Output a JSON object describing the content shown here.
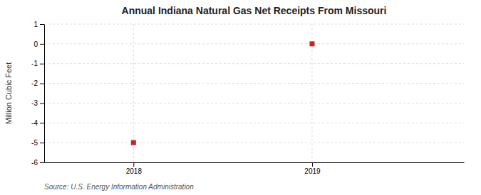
{
  "chart_data": {
    "type": "scatter",
    "title": "Annual Indiana Natural Gas Net Receipts From Missouri",
    "y_label": "Million Cubic Feet",
    "source": "Source: U.S. Energy Information Administration",
    "x": [
      2018,
      2019
    ],
    "values": [
      -5,
      0
    ],
    "xlim": [
      2017.5,
      2019.85
    ],
    "xticks": [
      2018,
      2019
    ],
    "ylim": [
      -6,
      1
    ],
    "yticks": [
      -6,
      -5,
      -4,
      -3,
      -2,
      -1,
      0,
      1
    ],
    "color": "#cc2222",
    "marker": "square",
    "grid": true
  }
}
